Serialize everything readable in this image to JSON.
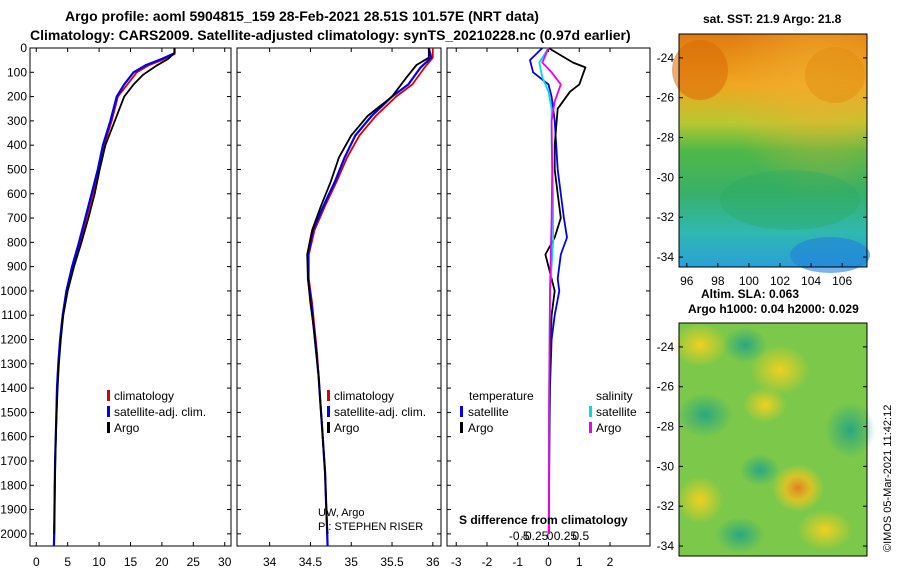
{
  "header": {
    "line1": "Argo profile: aoml 5904815_159 28-Feb-2021 28.51S 101.57E (NRT data)",
    "line2": "Climatology: CARS2009. Satellite-adjusted climatology: synTS_20210228.nc (0.97d earlier)"
  },
  "colors": {
    "climatology": "#dd0000",
    "satellite": "#0000ee",
    "argo": "#000000",
    "sal_sat": "#00dddd",
    "sal_argo": "#ee00ee"
  },
  "chart_data": [
    {
      "type": "line",
      "name": "temperature-profile",
      "xlim": [
        -1,
        31
      ],
      "ylim": [
        0,
        2050
      ],
      "xticks": [
        0,
        5,
        10,
        15,
        20,
        25,
        30
      ],
      "xtick_labels": [
        "0",
        "5",
        "10",
        "15",
        "20",
        "25",
        "30"
      ],
      "yticks": [
        0,
        100,
        200,
        300,
        400,
        500,
        600,
        700,
        800,
        900,
        1000,
        1100,
        1200,
        1300,
        1400,
        1500,
        1600,
        1700,
        1800,
        1900,
        2000
      ],
      "ytick_labels": [
        "0",
        "100",
        "200",
        "300",
        "400",
        "500",
        "600",
        "700",
        "800",
        "900",
        "1000",
        "1100",
        "1200",
        "1300",
        "1400",
        "1500",
        "1600",
        "1700",
        "1800",
        "1900",
        "2000"
      ],
      "legend": [
        "climatology",
        "satellite-adj. clim.",
        "Argo"
      ],
      "series": [
        {
          "name": "climatology",
          "color": "#dd0000",
          "points": [
            [
              22,
              0
            ],
            [
              22,
              25
            ],
            [
              20,
              50
            ],
            [
              18,
              70
            ],
            [
              16,
              100
            ],
            [
              14.5,
              150
            ],
            [
              13,
              200
            ],
            [
              12,
              300
            ],
            [
              10.8,
              400
            ],
            [
              10,
              500
            ],
            [
              9,
              600
            ],
            [
              8,
              700
            ],
            [
              7,
              800
            ],
            [
              5.8,
              900
            ],
            [
              4.8,
              1000
            ],
            [
              4.2,
              1100
            ],
            [
              3.8,
              1200
            ],
            [
              3.5,
              1300
            ],
            [
              3.3,
              1400
            ],
            [
              3.2,
              1500
            ],
            [
              3.1,
              1600
            ],
            [
              3,
              1700
            ],
            [
              2.95,
              1800
            ],
            [
              2.9,
              1900
            ],
            [
              2.85,
              2000
            ],
            [
              2.8,
              2050
            ]
          ]
        },
        {
          "name": "satellite-adj. clim.",
          "color": "#0000ee",
          "points": [
            [
              22,
              0
            ],
            [
              22,
              22
            ],
            [
              20,
              45
            ],
            [
              17.5,
              70
            ],
            [
              15.5,
              100
            ],
            [
              14,
              150
            ],
            [
              12.8,
              200
            ],
            [
              11.8,
              300
            ],
            [
              10.6,
              400
            ],
            [
              9.8,
              500
            ],
            [
              8.8,
              600
            ],
            [
              7.8,
              700
            ],
            [
              6.8,
              800
            ],
            [
              5.7,
              900
            ],
            [
              4.8,
              1000
            ],
            [
              4.2,
              1100
            ],
            [
              3.8,
              1200
            ],
            [
              3.5,
              1300
            ],
            [
              3.3,
              1400
            ],
            [
              3.2,
              1500
            ],
            [
              3.1,
              1600
            ],
            [
              3,
              1700
            ],
            [
              2.95,
              1800
            ],
            [
              2.9,
              1900
            ],
            [
              2.85,
              2000
            ],
            [
              2.8,
              2050
            ]
          ]
        },
        {
          "name": "Argo",
          "color": "#000000",
          "points": [
            [
              22,
              0
            ],
            [
              22,
              20
            ],
            [
              21,
              45
            ],
            [
              19,
              75
            ],
            [
              17,
              110
            ],
            [
              15.5,
              150
            ],
            [
              14,
              200
            ],
            [
              12.5,
              300
            ],
            [
              11,
              400
            ],
            [
              10.1,
              500
            ],
            [
              9.3,
              600
            ],
            [
              8.3,
              700
            ],
            [
              7.2,
              800
            ],
            [
              6,
              900
            ],
            [
              5,
              1000
            ],
            [
              4.3,
              1100
            ],
            [
              3.9,
              1200
            ],
            [
              3.6,
              1300
            ],
            [
              3.4,
              1400
            ],
            [
              3.25,
              1500
            ],
            [
              3.1,
              1600
            ],
            [
              3.02,
              1700
            ],
            [
              2.95,
              1800
            ],
            [
              2.9,
              1900
            ],
            [
              2.85,
              2000
            ]
          ]
        }
      ]
    },
    {
      "type": "line",
      "name": "salinity-profile",
      "xlim": [
        33.6,
        36.1
      ],
      "ylim": [
        0,
        2050
      ],
      "xticks": [
        34,
        34.5,
        35,
        35.5,
        36
      ],
      "xtick_labels": [
        "34",
        "34.5",
        "35",
        "35.5",
        "36"
      ],
      "legend": [
        "climatology",
        "satellite-adj. clim.",
        "Argo"
      ],
      "credit": [
        "UW, Argo",
        "PI: STEPHEN RISER"
      ],
      "series": [
        {
          "name": "climatology",
          "color": "#dd0000",
          "points": [
            [
              36.0,
              0
            ],
            [
              36.0,
              40
            ],
            [
              35.9,
              80
            ],
            [
              35.75,
              150
            ],
            [
              35.55,
              200
            ],
            [
              35.3,
              280
            ],
            [
              35.1,
              360
            ],
            [
              34.95,
              450
            ],
            [
              34.82,
              550
            ],
            [
              34.68,
              650
            ],
            [
              34.55,
              750
            ],
            [
              34.48,
              850
            ],
            [
              34.48,
              950
            ],
            [
              34.52,
              1050
            ],
            [
              34.55,
              1150
            ],
            [
              34.58,
              1250
            ],
            [
              34.6,
              1350
            ],
            [
              34.62,
              1450
            ],
            [
              34.64,
              1550
            ],
            [
              34.66,
              1650
            ],
            [
              34.68,
              1750
            ],
            [
              34.69,
              1850
            ],
            [
              34.7,
              1950
            ],
            [
              34.71,
              2050
            ]
          ]
        },
        {
          "name": "satellite-adj. clim.",
          "color": "#0000ee",
          "points": [
            [
              35.95,
              0
            ],
            [
              35.98,
              40
            ],
            [
              35.85,
              80
            ],
            [
              35.7,
              150
            ],
            [
              35.5,
              200
            ],
            [
              35.25,
              280
            ],
            [
              35.05,
              360
            ],
            [
              34.92,
              450
            ],
            [
              34.8,
              550
            ],
            [
              34.66,
              650
            ],
            [
              34.53,
              750
            ],
            [
              34.47,
              850
            ],
            [
              34.47,
              950
            ],
            [
              34.51,
              1050
            ],
            [
              34.54,
              1150
            ],
            [
              34.57,
              1250
            ],
            [
              34.6,
              1350
            ],
            [
              34.62,
              1450
            ],
            [
              34.64,
              1550
            ],
            [
              34.66,
              1650
            ],
            [
              34.68,
              1750
            ],
            [
              34.69,
              1850
            ],
            [
              34.7,
              1950
            ],
            [
              34.71,
              2050
            ]
          ]
        },
        {
          "name": "Argo",
          "color": "#000000",
          "points": [
            [
              35.95,
              0
            ],
            [
              35.95,
              40
            ],
            [
              35.8,
              70
            ],
            [
              35.68,
              120
            ],
            [
              35.5,
              200
            ],
            [
              35.2,
              280
            ],
            [
              35.0,
              360
            ],
            [
              34.85,
              450
            ],
            [
              34.75,
              550
            ],
            [
              34.63,
              650
            ],
            [
              34.52,
              750
            ],
            [
              34.46,
              850
            ],
            [
              34.47,
              950
            ],
            [
              34.5,
              1050
            ],
            [
              34.54,
              1150
            ],
            [
              34.57,
              1250
            ],
            [
              34.6,
              1350
            ],
            [
              34.62,
              1450
            ],
            [
              34.64,
              1550
            ],
            [
              34.66,
              1650
            ],
            [
              34.68,
              1750
            ],
            [
              34.69,
              1850
            ],
            [
              34.7,
              1950
            ],
            [
              34.71,
              2000
            ]
          ]
        }
      ]
    },
    {
      "type": "line",
      "name": "difference-profile",
      "xlim": [
        -3.3,
        3.3
      ],
      "ylim": [
        0,
        2050
      ],
      "xticks": [
        -3,
        -2,
        -1,
        0,
        1,
        2
      ],
      "xtick_labels": [
        "-3",
        "-2",
        "-1",
        "0",
        "1",
        "2"
      ],
      "top_ticks": [
        -0.5,
        -0.25,
        0,
        0.25,
        0.5
      ],
      "top_tick_labels": [
        "-0.5",
        "-0.25",
        "0",
        "0.25",
        "0.5"
      ],
      "top_axis_label": "S difference from climatology",
      "legend_temperature_title": "temperature",
      "legend_salinity_title": "salinity",
      "legend_labels": [
        "satellite",
        "Argo",
        "satellite",
        "Argo"
      ],
      "series": [
        {
          "name": "temperature satellite",
          "color": "#0000ee",
          "points": [
            [
              -0.2,
              0
            ],
            [
              -0.6,
              50
            ],
            [
              -0.5,
              100
            ],
            [
              0.0,
              150
            ],
            [
              0.1,
              200
            ],
            [
              0.2,
              300
            ],
            [
              0.25,
              400
            ],
            [
              0.3,
              500
            ],
            [
              0.4,
              600
            ],
            [
              0.5,
              700
            ],
            [
              0.6,
              780
            ],
            [
              0.4,
              850
            ],
            [
              0.3,
              950
            ],
            [
              0.35,
              1000
            ],
            [
              0.2,
              1100
            ],
            [
              0.1,
              1200
            ],
            [
              0.05,
              1400
            ],
            [
              0.03,
              1600
            ],
            [
              0.02,
              1800
            ],
            [
              0.01,
              2000
            ]
          ]
        },
        {
          "name": "temperature Argo",
          "color": "#000000",
          "points": [
            [
              0,
              0
            ],
            [
              0.8,
              60
            ],
            [
              1.2,
              80
            ],
            [
              1.0,
              150
            ],
            [
              0.7,
              180
            ],
            [
              0.3,
              250
            ],
            [
              0.2,
              400
            ],
            [
              0.2,
              500
            ],
            [
              0.3,
              600
            ],
            [
              0.4,
              700
            ],
            [
              0.2,
              780
            ],
            [
              -0.1,
              850
            ],
            [
              0.1,
              950
            ],
            [
              0.2,
              1000
            ],
            [
              0.1,
              1100
            ],
            [
              0.05,
              1300
            ],
            [
              0.03,
              1500
            ],
            [
              0.02,
              1800
            ],
            [
              0.01,
              2000
            ]
          ]
        },
        {
          "name": "salinity satellite",
          "color": "#00dddd",
          "points": [
            [
              0,
              0
            ],
            [
              -0.3,
              60
            ],
            [
              -0.2,
              120
            ],
            [
              0,
              180
            ],
            [
              0.1,
              250
            ],
            [
              0.1,
              400
            ],
            [
              0.15,
              600
            ],
            [
              0.15,
              800
            ],
            [
              0.05,
              1000
            ],
            [
              0.02,
              1400
            ],
            [
              0.01,
              2000
            ]
          ]
        },
        {
          "name": "salinity Argo",
          "color": "#ee00ee",
          "points": [
            [
              0,
              0
            ],
            [
              -0.2,
              60
            ],
            [
              0.1,
              100
            ],
            [
              0.4,
              150
            ],
            [
              0.2,
              220
            ],
            [
              0.1,
              300
            ],
            [
              0.12,
              500
            ],
            [
              0.1,
              700
            ],
            [
              0.05,
              1000
            ],
            [
              0.02,
              1500
            ],
            [
              0.01,
              2000
            ]
          ]
        }
      ]
    },
    {
      "type": "heatmap",
      "name": "sst-map",
      "title": "sat. SST: 21.9 Argo: 21.8",
      "xlim": [
        95.5,
        107.6
      ],
      "ylim": [
        -34.5,
        -22.8
      ],
      "xticks": [
        96,
        98,
        100,
        102,
        104,
        106
      ],
      "xtick_labels": [
        "96",
        "98",
        "100",
        "102",
        "104",
        "106"
      ],
      "yticks": [
        -24,
        -26,
        -28,
        -30,
        -32,
        -34
      ],
      "ytick_labels": [
        "-24",
        "-26",
        "-28",
        "-30",
        "-32",
        "-34"
      ]
    },
    {
      "type": "heatmap",
      "name": "sla-map",
      "title_line1": "Altim. SLA: 0.063",
      "title_line2": "Argo h1000: 0.04 h2000: 0.029",
      "ylim": [
        -34.5,
        -22.8
      ],
      "yticks": [
        -24,
        -26,
        -28,
        -30,
        -32,
        -34
      ],
      "ytick_labels": [
        "-24",
        "-26",
        "-28",
        "-30",
        "-32",
        "-34"
      ],
      "watermark": "©IMOS 05-Mar-2021 11:42:12"
    }
  ]
}
